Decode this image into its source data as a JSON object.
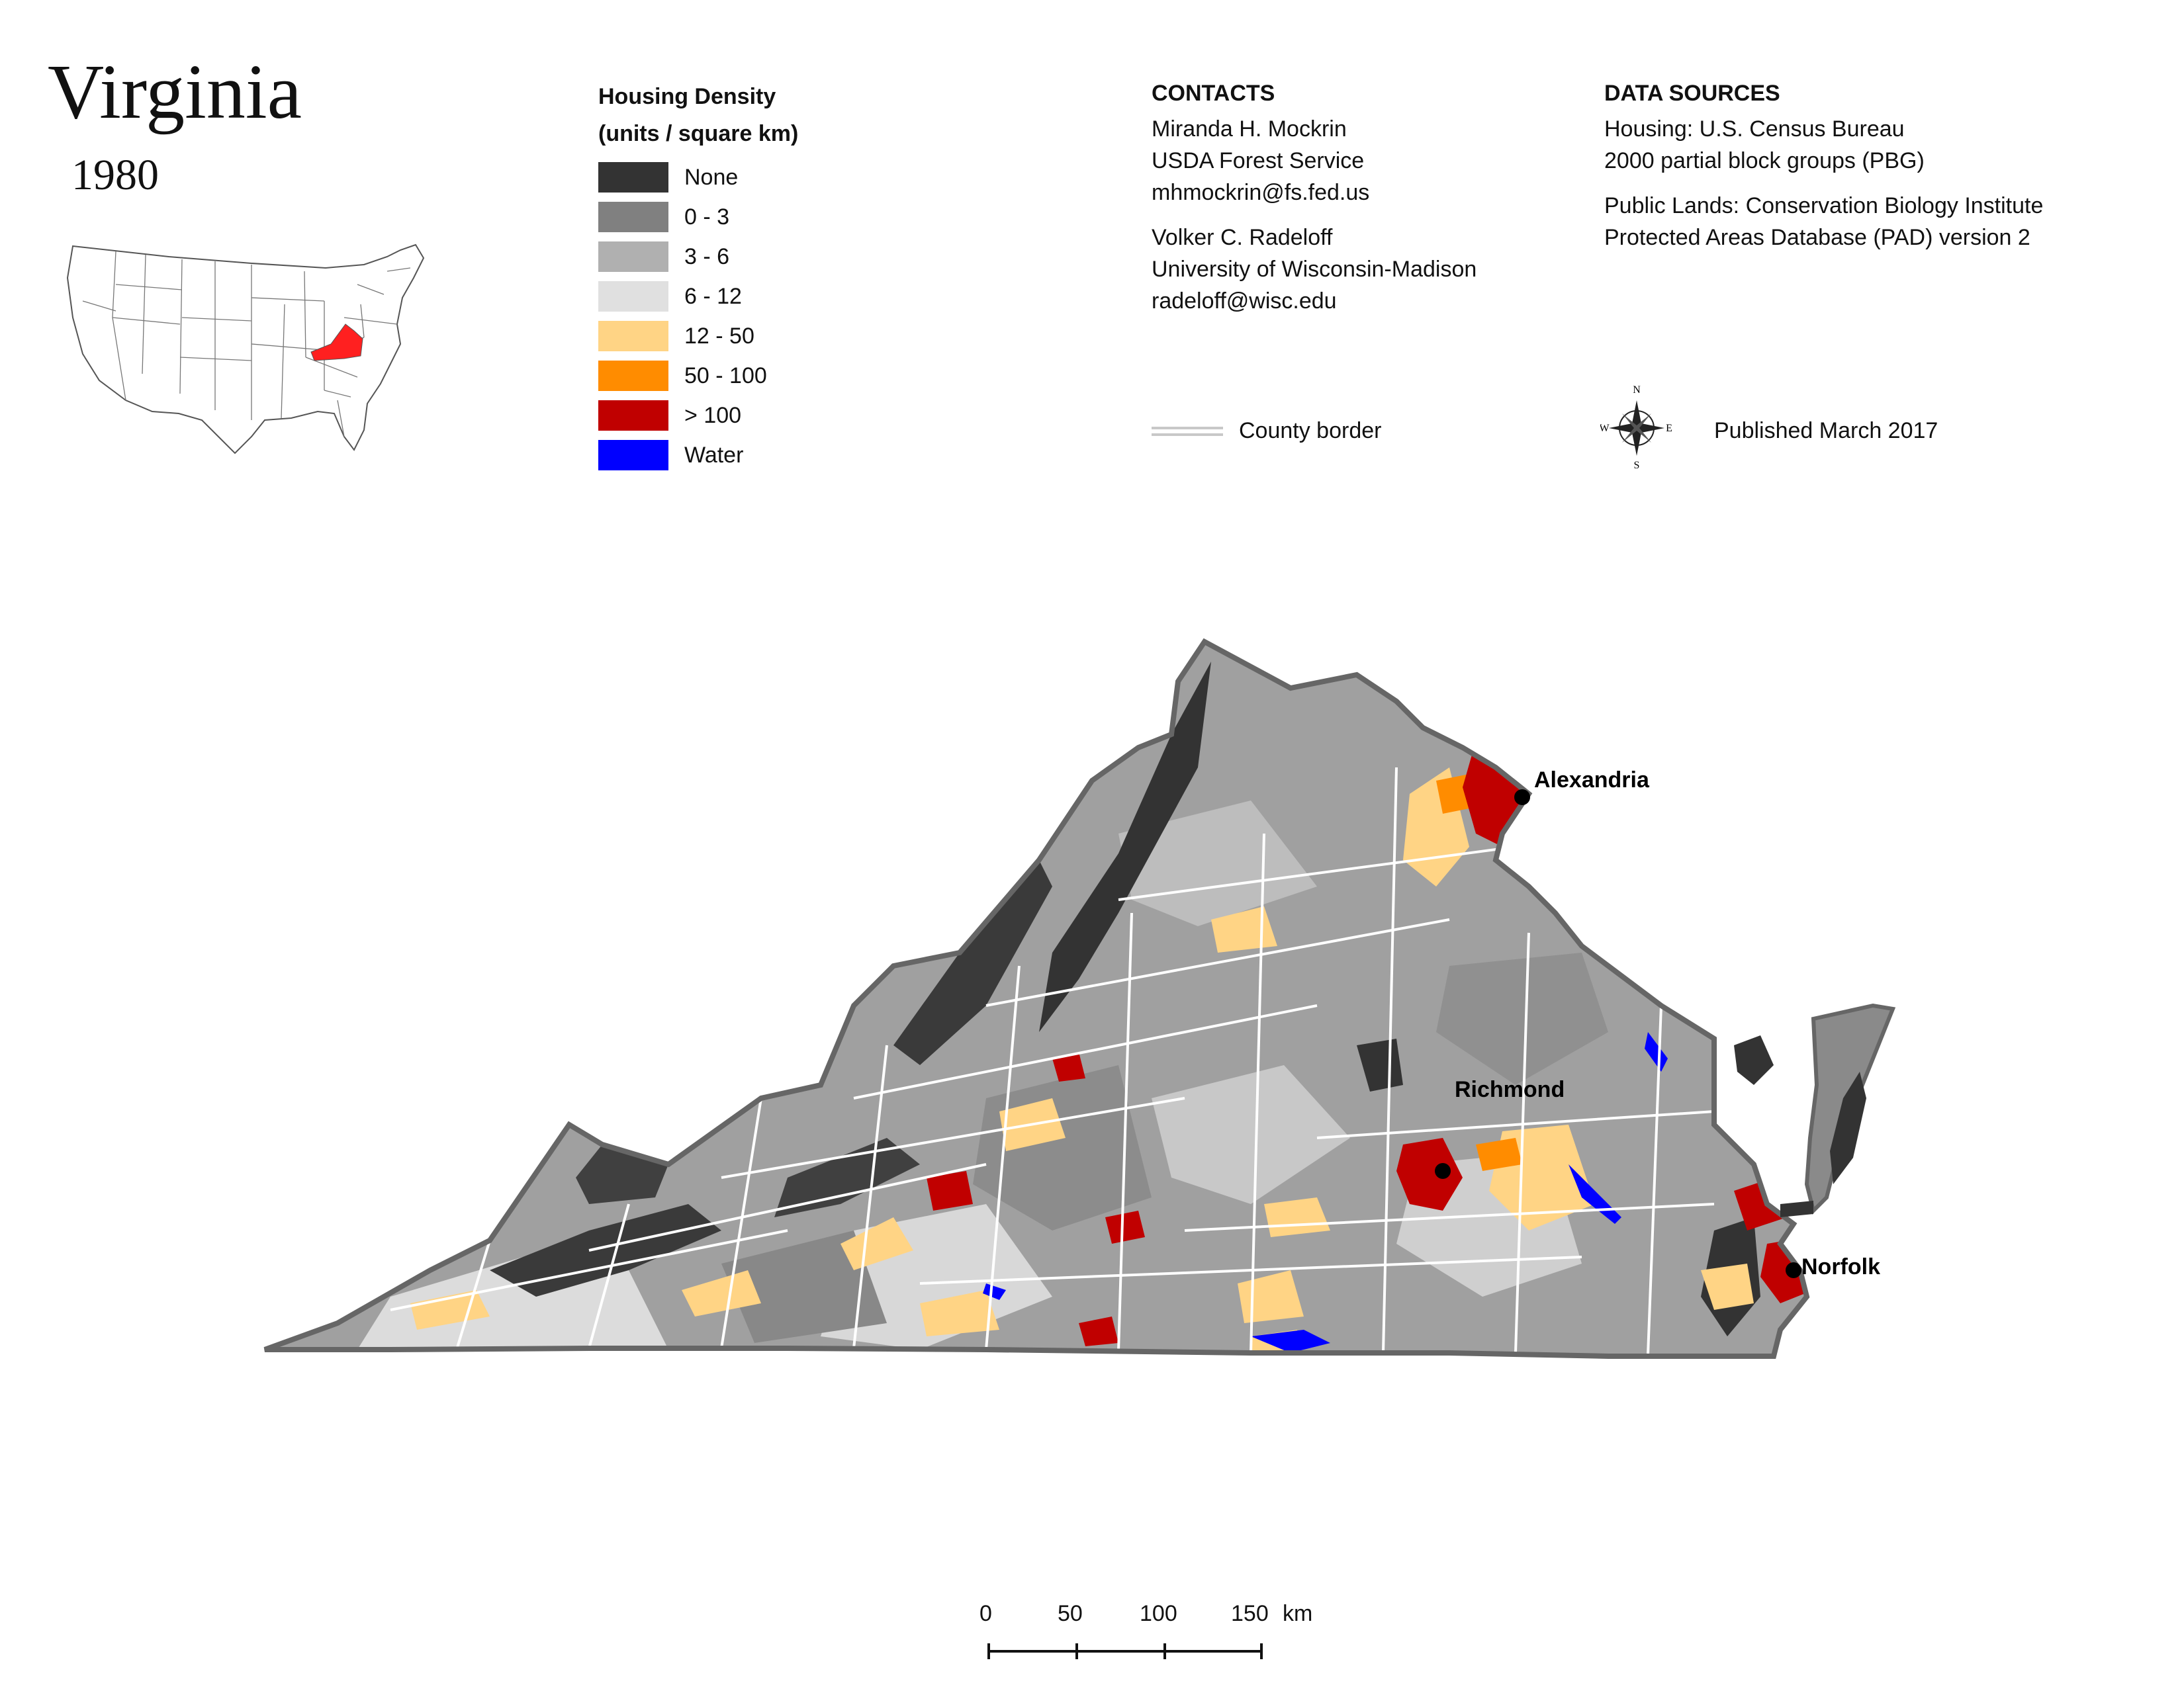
{
  "title": "Virginia",
  "year": "1980",
  "legend": {
    "title_line1": "Housing Density",
    "title_line2": "(units / square km)",
    "items": [
      {
        "label": "None",
        "color": "#333333"
      },
      {
        "label": "0 - 3",
        "color": "#808080"
      },
      {
        "label": "3 - 6",
        "color": "#b0b0b0"
      },
      {
        "label": "6 - 12",
        "color": "#e0e0e0"
      },
      {
        "label": "12 - 50",
        "color": "#ffd485"
      },
      {
        "label": "50 - 100",
        "color": "#ff8c00"
      },
      {
        "label": "> 100",
        "color": "#c00000"
      },
      {
        "label": "Water",
        "color": "#0000ff"
      }
    ]
  },
  "contacts": {
    "heading": "CONTACTS",
    "person1": {
      "name": "Miranda H. Mockrin",
      "org": "USDA Forest Service",
      "email": "mhmockrin@fs.fed.us"
    },
    "person2": {
      "name": "Volker C. Radeloff",
      "org": "University of Wisconsin-Madison",
      "email": "radeloff@wisc.edu"
    }
  },
  "sources": {
    "heading": "DATA SOURCES",
    "line1": "Housing: U.S. Census Bureau",
    "line2": "2000 partial block groups (PBG)",
    "line3": "Public Lands: Conservation Biology Institute",
    "line4": "Protected Areas Database (PAD) version 2"
  },
  "county_border_label": "County border",
  "published": "Published March 2017",
  "compass": {
    "n": "N",
    "s": "S",
    "e": "E",
    "w": "W"
  },
  "cities": {
    "alexandria": "Alexandria",
    "richmond": "Richmond",
    "norfolk": "Norfolk"
  },
  "highlight_color": "#ff2020",
  "scale": {
    "t0": "0",
    "t50": "50",
    "t100": "100",
    "t150": "150",
    "unit": "km"
  }
}
